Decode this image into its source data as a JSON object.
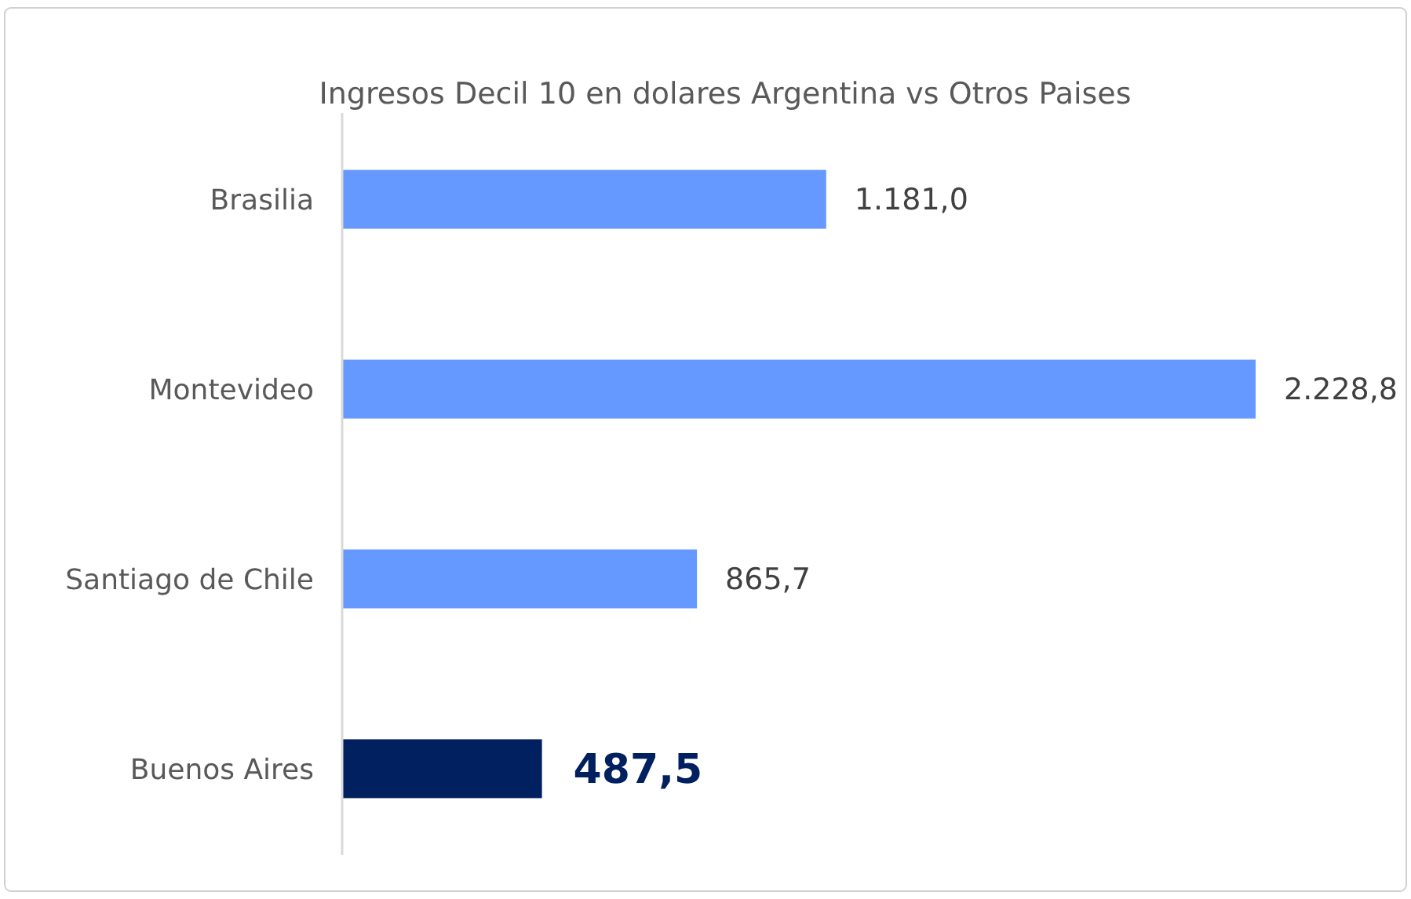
{
  "chart_data": {
    "type": "bar",
    "orientation": "horizontal",
    "title": "Ingresos Decil 10 en dolares Argentina vs Otros Paises",
    "categories": [
      "Brasilia",
      "Montevideo",
      "Santiago de Chile",
      "Buenos Aires"
    ],
    "values": [
      1181.0,
      2228.8,
      865.7,
      487.5
    ],
    "colors": [
      "#6699ff",
      "#6699ff",
      "#6699ff",
      "#002060"
    ],
    "value_labels": [
      "1.181,0",
      "2.228,8",
      "865,7",
      "487,5"
    ]
  }
}
